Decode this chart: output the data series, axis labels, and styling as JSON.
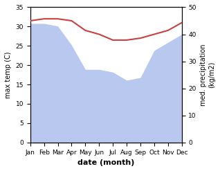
{
  "months": [
    "Jan",
    "Feb",
    "Mar",
    "Apr",
    "May",
    "Jun",
    "Jul",
    "Aug",
    "Sep",
    "Oct",
    "Nov",
    "Dec"
  ],
  "temperature": [
    31.5,
    32.0,
    32.0,
    31.5,
    29.0,
    28.0,
    26.5,
    26.5,
    27.0,
    28.0,
    29.0,
    31.0
  ],
  "precipitation": [
    44.0,
    44.0,
    43.0,
    36.0,
    27.0,
    27.0,
    26.0,
    23.0,
    24.0,
    34.0,
    37.0,
    40.0
  ],
  "temp_color": "#c94040",
  "precip_color": "#b8c8ee",
  "xlabel": "date (month)",
  "ylabel_left": "max temp (C)",
  "ylabel_right": "med. precipitation\n(kg/m2)",
  "ylim_left": [
    0,
    35
  ],
  "ylim_right": [
    0,
    50
  ],
  "yticks_left": [
    0,
    5,
    10,
    15,
    20,
    25,
    30,
    35
  ],
  "yticks_right": [
    0,
    10,
    20,
    30,
    40,
    50
  ],
  "background_color": "#ffffff"
}
